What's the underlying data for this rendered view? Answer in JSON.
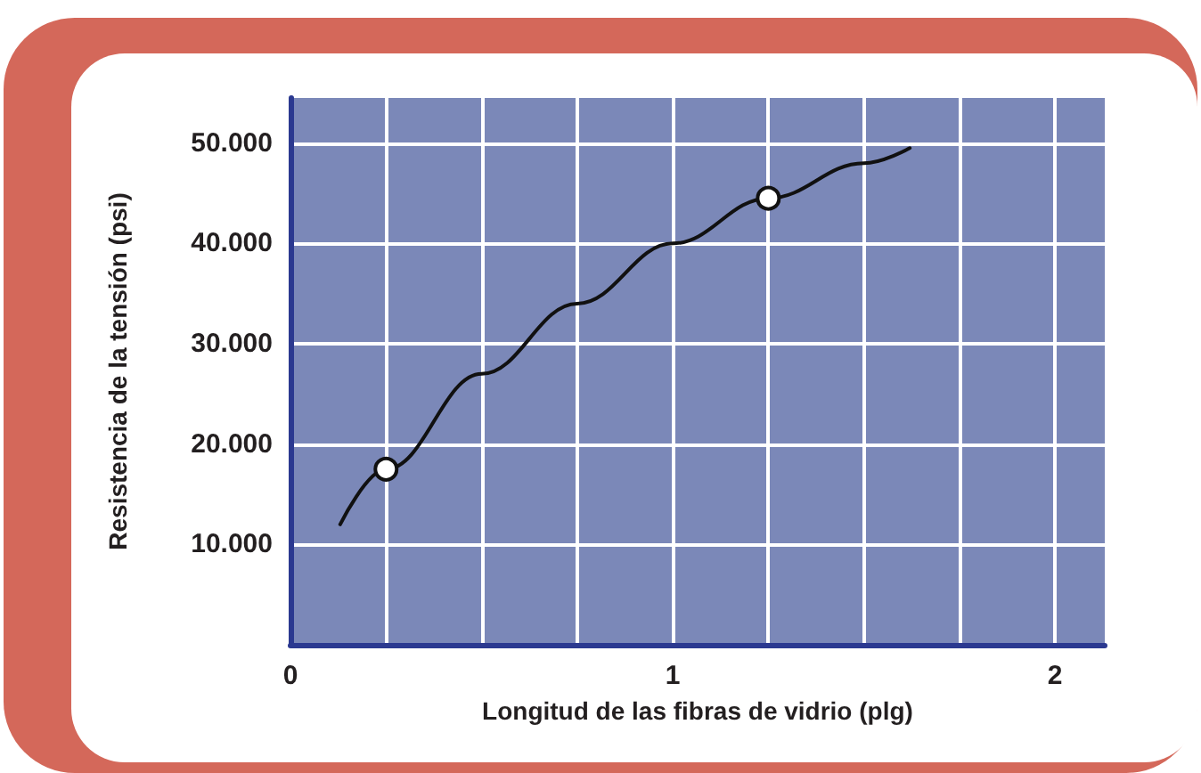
{
  "chart_data": {
    "type": "line",
    "xlabel": "Longitud de las fibras de vidrio (plg)",
    "ylabel": "Resistencia de la tensión (psi)",
    "xlim": [
      0,
      2.13
    ],
    "ylim": [
      0,
      54500
    ],
    "xticks": [
      0,
      {
        "value": 0.25,
        "label": null
      },
      {
        "value": 0.5,
        "label": null
      },
      {
        "value": 0.75,
        "label": null
      },
      1,
      {
        "value": 1.25,
        "label": null
      },
      {
        "value": 1.5,
        "label": null
      },
      {
        "value": 1.75,
        "label": null
      },
      2
    ],
    "yticks": [
      {
        "value": 10000,
        "label": "10.000"
      },
      {
        "value": 20000,
        "label": "20.000"
      },
      {
        "value": 30000,
        "label": "30.000"
      },
      {
        "value": 40000,
        "label": "40.000"
      },
      {
        "value": 50000,
        "label": "50.000"
      }
    ],
    "grid": true,
    "line_style": "solid",
    "series": [
      {
        "color": "#111111",
        "marker": "none",
        "x": [
          0.13,
          0.25,
          0.5,
          0.75,
          1.0,
          1.25,
          1.5,
          1.62
        ],
        "values": [
          12000,
          17500,
          27000,
          34000,
          40000,
          44500,
          48000,
          49500
        ]
      },
      {
        "type": "scatter",
        "color": "#111111",
        "marker": "circle",
        "x": [
          0.25,
          1.25
        ],
        "values": [
          17500,
          44500
        ]
      }
    ]
  }
}
